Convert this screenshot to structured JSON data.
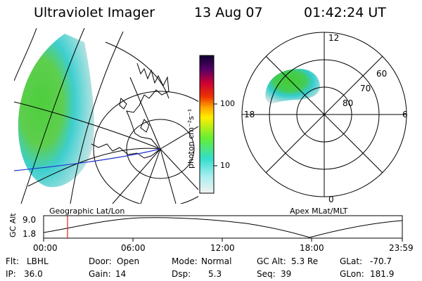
{
  "header": {
    "instrument": "Ultraviolet Imager",
    "date": "13 Aug 07",
    "time": "01:42:24 UT"
  },
  "colorbar": {
    "unit_label": "photon cm⁻²s⁻¹",
    "ticks": [
      "100",
      "10"
    ]
  },
  "polar_plot": {
    "mlt_labels": [
      "12",
      "18",
      "6",
      "0"
    ],
    "lat_labels": [
      "60",
      "70",
      "80"
    ]
  },
  "panel_labels": {
    "geographic": "Geographic Lat/Lon",
    "apex": "Apex MLat/MLT"
  },
  "altitude_plot": {
    "ylabel": "GC Alt",
    "ytick_top": "9.0",
    "ytick_bottom": "1.8",
    "xticks": [
      "00:00",
      "06:00",
      "12:00",
      "18:00",
      "23:59"
    ]
  },
  "status": {
    "flt_label": "Flt:",
    "flt_value": "LBHL",
    "ip_label": "IP:",
    "ip_value": "36.0",
    "door_label": "Door:",
    "door_value": "Open",
    "gain_label": "Gain:",
    "gain_value": "14",
    "mode_label": "Mode:",
    "mode_value": "Normal",
    "dsp_label": "Dsp:",
    "dsp_value": "5.3",
    "gcalt_label": "GC Alt:",
    "gcalt_value": "5.3 Re",
    "seq_label": "Seq:",
    "seq_value": "39",
    "glat_label": "GLat:",
    "glat_value": "-70.7",
    "glon_label": "GLon:",
    "glon_value": "181.9"
  }
}
